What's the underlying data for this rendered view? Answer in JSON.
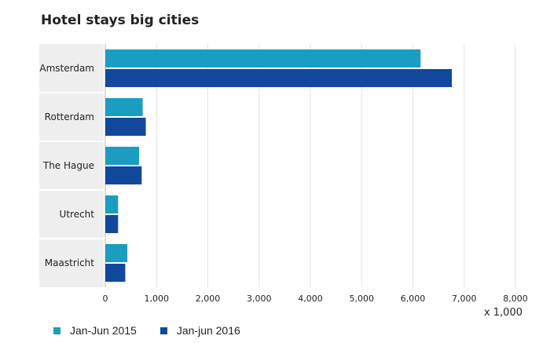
{
  "chart_data": {
    "type": "bar",
    "orientation": "horizontal",
    "title": "Hotel stays big cities",
    "categories": [
      "Amsterdam",
      "Rotterdam",
      "The Hague",
      "Utrecht",
      "Maastricht"
    ],
    "series": [
      {
        "name": "Jan-Jun 2015",
        "color": "#1a9dc0",
        "values": [
          6150,
          730,
          660,
          250,
          430
        ]
      },
      {
        "name": "Jan-jun 2016",
        "color": "#12489b",
        "values": [
          6760,
          790,
          710,
          250,
          390
        ]
      }
    ],
    "xlim": [
      0,
      8000
    ],
    "xticks": [
      "0",
      "1,000",
      "2,000",
      "3,000",
      "4,000",
      "5,000",
      "6,000",
      "7,000",
      "8,000"
    ],
    "xunit": "x 1,000",
    "grid": true,
    "legend_position": "bottom"
  }
}
